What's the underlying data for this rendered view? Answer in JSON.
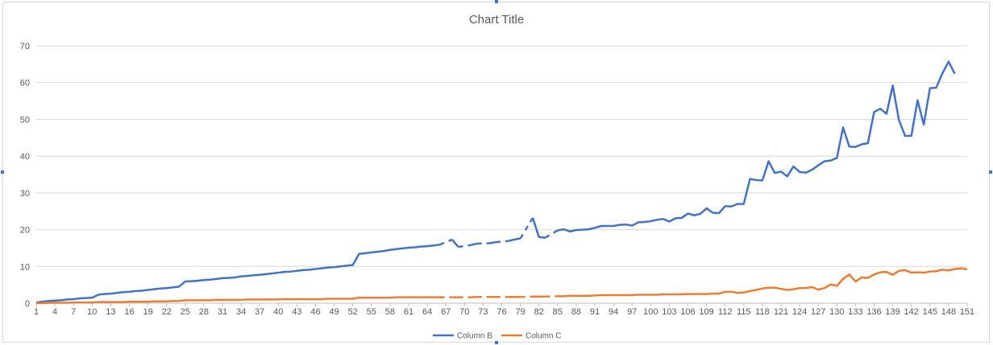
{
  "chart_data": {
    "type": "line",
    "title": "Chart Title",
    "xlabel": "",
    "ylabel": "",
    "ylim": [
      0,
      70
    ],
    "yticks": [
      "0",
      "10",
      "20",
      "30",
      "40",
      "50",
      "60",
      "70"
    ],
    "grid": true,
    "legend_position": "bottom",
    "x_count": 151,
    "x_tick_labels": [
      "1",
      "4",
      "7",
      "10",
      "13",
      "16",
      "19",
      "22",
      "25",
      "28",
      "31",
      "34",
      "37",
      "40",
      "43",
      "46",
      "49",
      "52",
      "55",
      "58",
      "61",
      "64",
      "67",
      "70",
      "73",
      "76",
      "79",
      "82",
      "85",
      "88",
      "91",
      "94",
      "97",
      "100",
      "103",
      "106",
      "109",
      "112",
      "115",
      "118",
      "121",
      "124",
      "127",
      "130",
      "133",
      "136",
      "139",
      "142",
      "145",
      "148",
      "151"
    ],
    "series": [
      {
        "name": "Column B",
        "color": "#4472c4",
        "values": [
          0.2,
          0.4,
          0.6,
          0.7,
          0.8,
          1.0,
          1.1,
          1.3,
          1.4,
          1.5,
          2.3,
          2.5,
          2.6,
          2.8,
          3.0,
          3.1,
          3.3,
          3.4,
          3.6,
          3.8,
          4.0,
          4.1,
          4.3,
          4.5,
          5.9,
          6.0,
          6.1,
          6.3,
          6.4,
          6.6,
          6.8,
          6.9,
          7.0,
          7.3,
          7.4,
          7.6,
          7.7,
          7.9,
          8.1,
          8.3,
          8.5,
          8.6,
          8.8,
          9.0,
          9.1,
          9.3,
          9.5,
          9.7,
          9.8,
          10.0,
          10.2,
          10.4,
          13.4,
          13.6,
          13.8,
          14.0,
          14.2,
          14.5,
          14.7,
          14.9,
          15.1,
          15.2,
          15.4,
          15.5,
          15.7,
          15.9,
          null,
          17.3,
          15.3,
          null,
          15.8,
          16.2,
          null,
          16.3,
          16.6,
          null,
          16.9,
          17.3,
          17.6,
          null,
          23.2,
          18.0,
          17.8,
          null,
          19.8,
          20.1,
          19.5,
          19.9,
          20.0,
          20.1,
          20.5,
          21.0,
          21.0,
          21.0,
          21.3,
          21.4,
          21.1,
          22.0,
          22.1,
          22.3,
          22.7,
          22.9,
          22.2,
          23.1,
          23.2,
          24.4,
          23.9,
          24.3,
          25.8,
          24.6,
          24.5,
          26.4,
          26.3,
          27.0,
          27.0,
          33.8,
          33.5,
          33.4,
          38.6,
          35.4,
          35.8,
          34.5,
          37.2,
          35.7,
          35.5,
          36.3,
          37.5,
          38.6,
          38.8,
          39.5,
          47.8,
          42.6,
          42.5,
          43.2,
          43.5,
          52.0,
          52.9,
          51.5,
          59.2,
          49.8,
          45.5,
          45.5,
          55.2,
          48.6,
          58.5,
          58.6,
          62.5,
          65.7,
          62.4
        ]
      },
      {
        "name": "Column C",
        "color": "#ed7d31",
        "values": [
          0.0,
          0.0,
          0.1,
          0.1,
          0.1,
          0.1,
          0.2,
          0.2,
          0.2,
          0.2,
          0.3,
          0.3,
          0.3,
          0.3,
          0.3,
          0.4,
          0.4,
          0.4,
          0.4,
          0.5,
          0.5,
          0.5,
          0.6,
          0.6,
          0.8,
          0.8,
          0.8,
          0.8,
          0.8,
          0.9,
          0.9,
          0.9,
          0.9,
          0.9,
          1.0,
          1.0,
          1.0,
          1.0,
          1.0,
          1.0,
          1.1,
          1.1,
          1.1,
          1.1,
          1.1,
          1.1,
          1.1,
          1.2,
          1.2,
          1.2,
          1.2,
          1.2,
          1.5,
          1.5,
          1.5,
          1.5,
          1.5,
          1.5,
          1.6,
          1.6,
          1.6,
          1.6,
          1.6,
          1.6,
          1.6,
          1.6,
          null,
          1.6,
          1.6,
          null,
          1.6,
          1.7,
          null,
          1.7,
          1.7,
          null,
          1.7,
          1.7,
          1.7,
          null,
          1.8,
          1.8,
          1.8,
          null,
          1.9,
          1.9,
          2.0,
          2.0,
          2.0,
          2.0,
          2.1,
          2.2,
          2.2,
          2.2,
          2.2,
          2.2,
          2.2,
          2.3,
          2.3,
          2.3,
          2.3,
          2.4,
          2.4,
          2.4,
          2.4,
          2.5,
          2.5,
          2.5,
          2.5,
          2.6,
          2.6,
          3.1,
          3.1,
          2.8,
          2.9,
          3.3,
          3.6,
          4.0,
          4.2,
          4.2,
          3.9,
          3.6,
          3.8,
          4.1,
          4.1,
          4.4,
          3.7,
          4.1,
          5.1,
          4.7,
          6.6,
          7.8,
          5.9,
          7.0,
          6.9,
          7.8,
          8.4,
          8.5,
          7.7,
          8.8,
          9.0,
          8.3,
          8.4,
          8.3,
          8.6,
          8.7,
          9.1,
          8.9,
          9.3,
          9.5,
          9.2
        ]
      }
    ]
  }
}
